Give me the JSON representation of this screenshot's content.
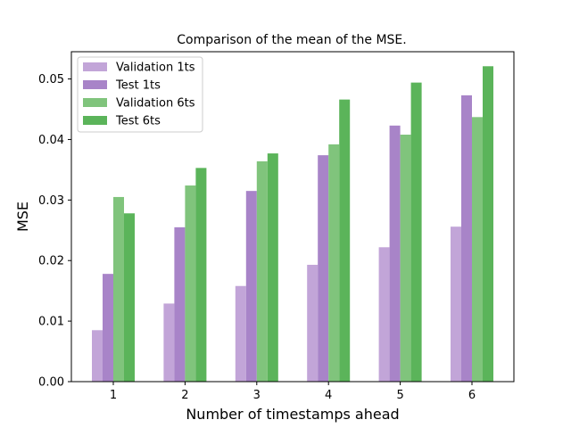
{
  "chart_data": {
    "type": "bar",
    "title": "Comparison of the mean of the MSE.",
    "xlabel": "Number of timestamps ahead",
    "ylabel": "MSE",
    "categories": [
      "1",
      "2",
      "3",
      "4",
      "5",
      "6"
    ],
    "ylim": [
      0,
      0.0545
    ],
    "yticks": [
      "0.00",
      "0.01",
      "0.02",
      "0.03",
      "0.04",
      "0.05"
    ],
    "grid": false,
    "legend_position": "top-left",
    "series": [
      {
        "name": "Validation 1ts",
        "color": "#c2a5d8",
        "values": [
          0.0085,
          0.0129,
          0.0158,
          0.0193,
          0.0222,
          0.0256
        ]
      },
      {
        "name": "Test 1ts",
        "color": "#a884c8",
        "values": [
          0.0178,
          0.0255,
          0.0315,
          0.0374,
          0.0423,
          0.0473
        ]
      },
      {
        "name": "Validation 6ts",
        "color": "#80c47c",
        "values": [
          0.0305,
          0.0324,
          0.0364,
          0.0392,
          0.0408,
          0.0437
        ]
      },
      {
        "name": "Test 6ts",
        "color": "#5bb45a",
        "values": [
          0.0278,
          0.0353,
          0.0377,
          0.0466,
          0.0494,
          0.0521
        ]
      }
    ]
  }
}
